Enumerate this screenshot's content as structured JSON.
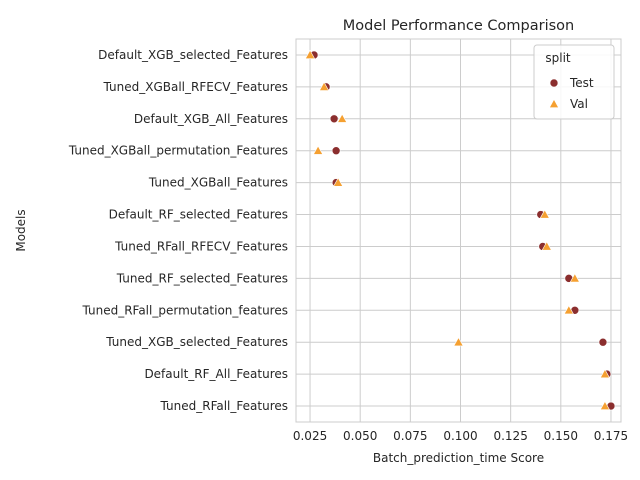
{
  "chart_data": {
    "type": "scatter",
    "title": "Model Performance Comparison",
    "xlabel": "Batch_prediction_time Score",
    "ylabel": "Models",
    "xlim": [
      0.018,
      0.18
    ],
    "xticks": [
      "0.025",
      "0.050",
      "0.075",
      "0.100",
      "0.125",
      "0.150",
      "0.175"
    ],
    "xtick_values": [
      0.025,
      0.05,
      0.075,
      0.1,
      0.125,
      0.15,
      0.175
    ],
    "categories": [
      "Default_XGB_selected_Features",
      "Tuned_XGBall_RFECV_Features",
      "Default_XGB_All_Features",
      "Tuned_XGBall_permutation_Features",
      "Tuned_XGBall_Features",
      "Default_RF_selected_Features",
      "Tuned_RFall_RFECV_Features",
      "Tuned_RF_selected_Features",
      "Tuned_RFall_permutation_features",
      "Tuned_XGB_selected_Features",
      "Default_RF_All_Features",
      "Tuned_RFall_Features"
    ],
    "grid": true,
    "legend": {
      "title": "split",
      "placement": "top-right"
    },
    "series": [
      {
        "name": "Test",
        "marker": "circle",
        "color": "#8b2e2e",
        "values": [
          0.027,
          0.033,
          0.037,
          0.038,
          0.038,
          0.14,
          0.141,
          0.154,
          0.157,
          0.171,
          0.173,
          0.175
        ]
      },
      {
        "name": "Val",
        "marker": "triangle",
        "color": "#f5a031",
        "values": [
          0.025,
          0.032,
          0.041,
          0.029,
          0.039,
          0.142,
          0.143,
          0.157,
          0.154,
          0.099,
          0.172,
          0.172
        ]
      }
    ]
  }
}
